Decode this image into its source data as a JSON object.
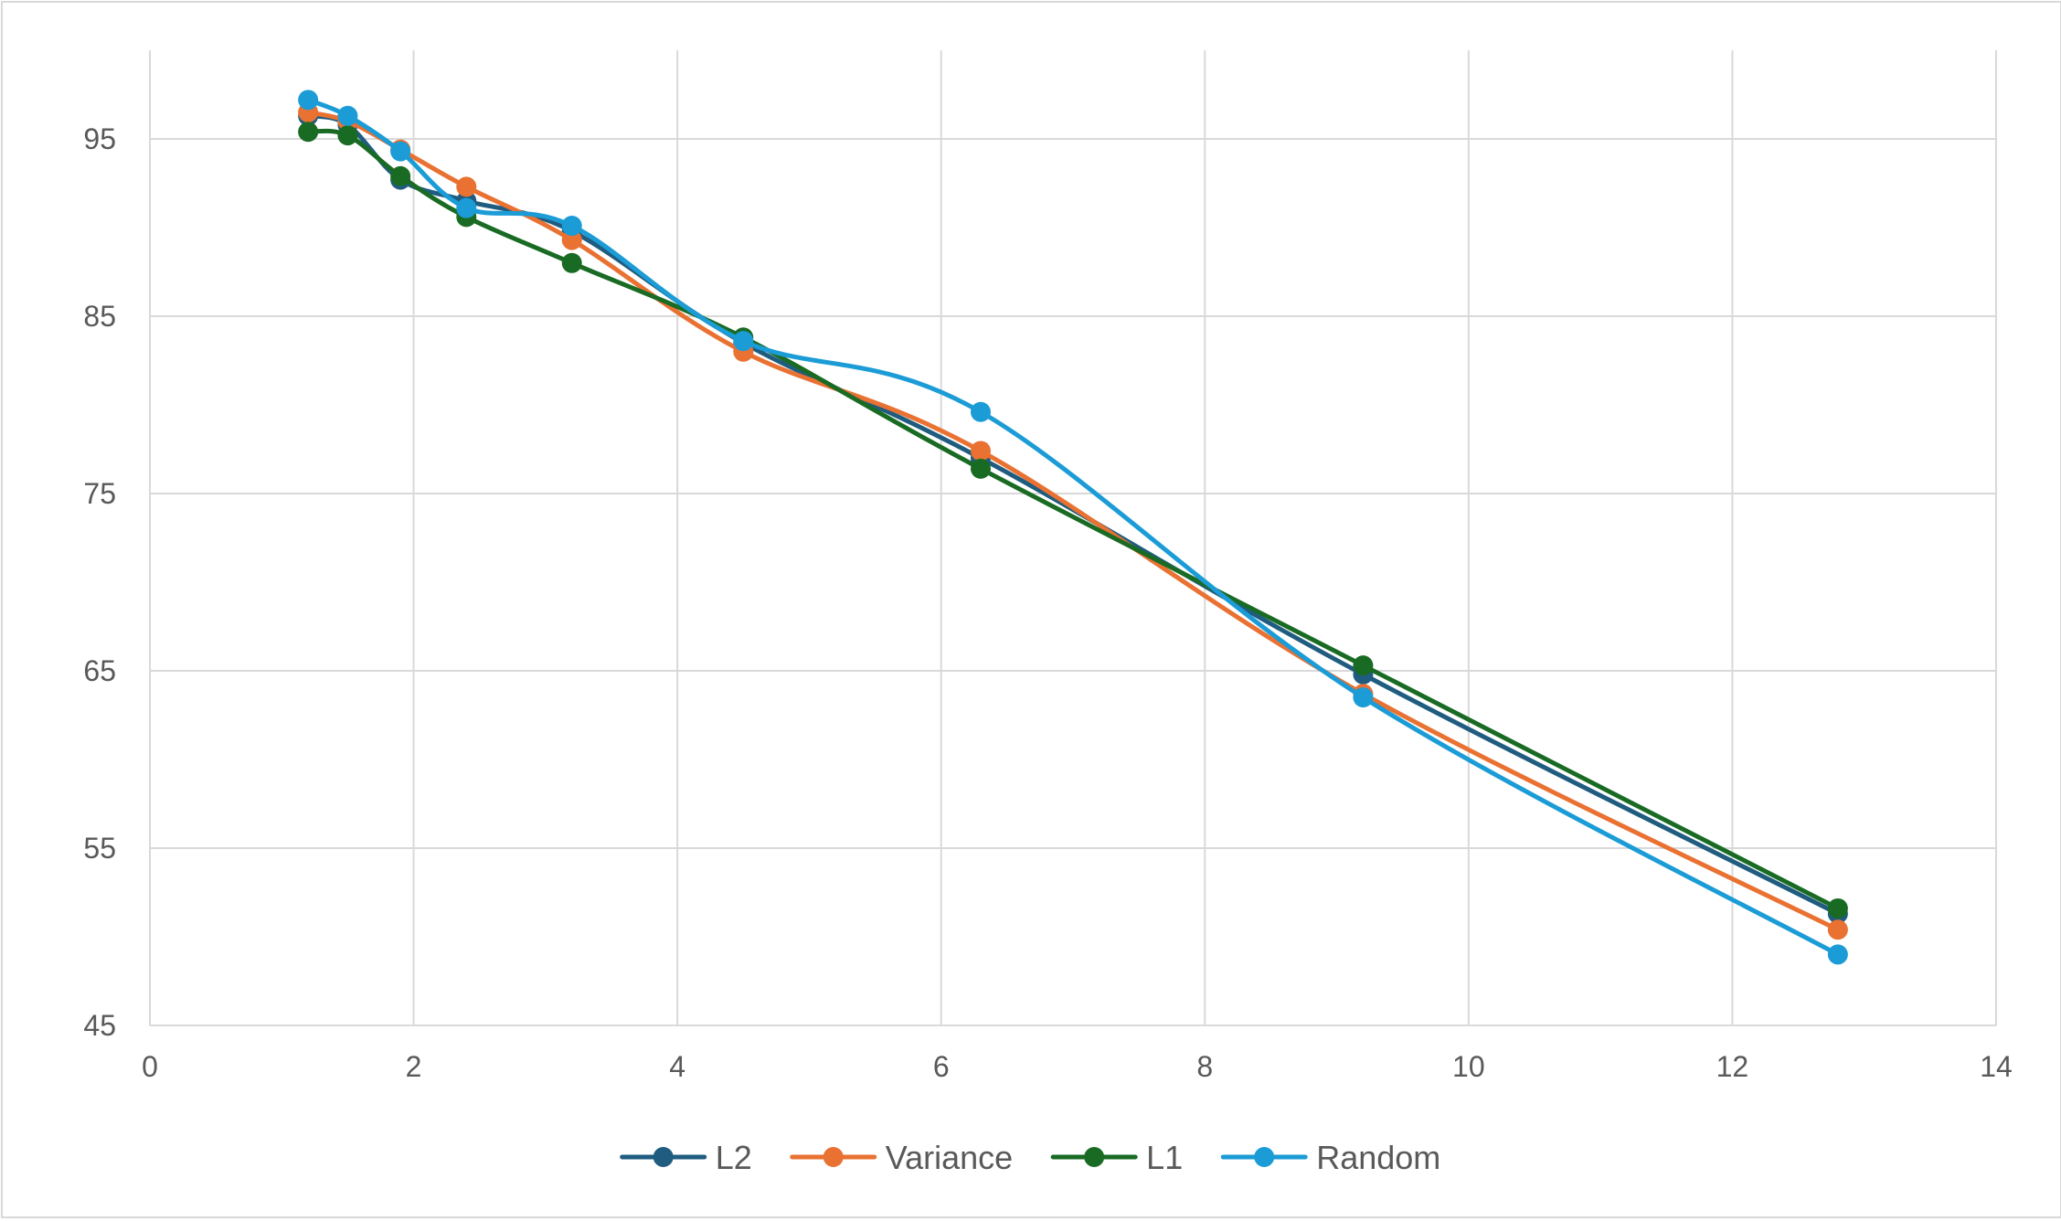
{
  "chart_data": {
    "type": "line",
    "title": "",
    "xlabel": "",
    "ylabel": "",
    "xlim": [
      0,
      14
    ],
    "ylim": [
      45,
      100
    ],
    "x_ticks": [
      0,
      2,
      4,
      6,
      8,
      10,
      12,
      14
    ],
    "y_ticks": [
      45,
      55,
      65,
      75,
      85,
      95
    ],
    "x_tick_labels": [
      "0",
      "2",
      "4",
      "6",
      "8",
      "10",
      "12",
      "14"
    ],
    "y_tick_labels": [
      "45",
      "55",
      "65",
      "75",
      "85",
      "95"
    ],
    "grid": true,
    "smoothed": true,
    "legend_position": "bottom",
    "series": [
      {
        "name": "L2",
        "color": "#1f5c80",
        "points": [
          [
            1.2,
            96.3
          ],
          [
            1.5,
            95.8
          ],
          [
            1.9,
            92.7
          ],
          [
            2.4,
            91.5
          ],
          [
            3.2,
            89.8
          ],
          [
            4.5,
            83.5
          ],
          [
            6.3,
            77.0
          ],
          [
            9.2,
            64.8
          ],
          [
            12.8,
            51.3
          ]
        ]
      },
      {
        "name": "Variance",
        "color": "#e97132",
        "points": [
          [
            1.2,
            96.5
          ],
          [
            1.5,
            96.0
          ],
          [
            1.9,
            94.4
          ],
          [
            2.4,
            92.3
          ],
          [
            3.2,
            89.3
          ],
          [
            4.5,
            83.0
          ],
          [
            6.3,
            77.4
          ],
          [
            9.2,
            63.7
          ],
          [
            12.8,
            50.4
          ]
        ]
      },
      {
        "name": "L1",
        "color": "#196b24",
        "points": [
          [
            1.2,
            95.4
          ],
          [
            1.5,
            95.2
          ],
          [
            1.9,
            92.9
          ],
          [
            2.4,
            90.6
          ],
          [
            3.2,
            88.0
          ],
          [
            4.5,
            83.8
          ],
          [
            6.3,
            76.4
          ],
          [
            9.2,
            65.3
          ],
          [
            12.8,
            51.6
          ]
        ]
      },
      {
        "name": "Random",
        "color": "#1b9cd6",
        "points": [
          [
            1.2,
            97.2
          ],
          [
            1.5,
            96.3
          ],
          [
            1.9,
            94.3
          ],
          [
            2.4,
            91.1
          ],
          [
            3.2,
            90.1
          ],
          [
            4.5,
            83.6
          ],
          [
            6.3,
            79.6
          ],
          [
            9.2,
            63.5
          ],
          [
            12.8,
            49.0
          ]
        ]
      }
    ]
  }
}
